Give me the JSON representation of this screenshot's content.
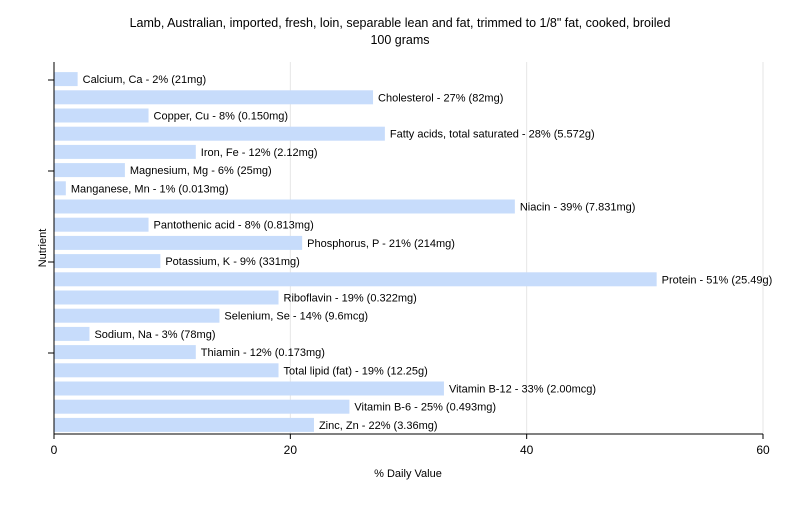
{
  "chart_data": {
    "type": "bar",
    "orientation": "horizontal",
    "title": "Lamb, Australian, imported, fresh, loin, separable lean and fat, trimmed to 1/8\" fat, cooked, broiled",
    "subtitle": "100 grams",
    "xlabel": "% Daily Value",
    "ylabel": "Nutrient",
    "xlim": [
      0,
      60
    ],
    "xticks": [
      0,
      20,
      40,
      60
    ],
    "grid": true,
    "legend": "none",
    "bar_color": "#c7dcfb",
    "categories": [
      "Calcium, Ca",
      "Cholesterol",
      "Copper, Cu",
      "Fatty acids, total saturated",
      "Iron, Fe",
      "Magnesium, Mg",
      "Manganese, Mn",
      "Niacin",
      "Pantothenic acid",
      "Phosphorus, P",
      "Potassium, K",
      "Protein",
      "Riboflavin",
      "Selenium, Se",
      "Sodium, Na",
      "Thiamin",
      "Total lipid (fat)",
      "Vitamin B-12",
      "Vitamin B-6",
      "Zinc, Zn"
    ],
    "values": [
      2,
      27,
      8,
      28,
      12,
      6,
      1,
      39,
      8,
      21,
      9,
      51,
      19,
      14,
      3,
      12,
      19,
      33,
      25,
      22
    ],
    "labels": [
      "Calcium, Ca - 2% (21mg)",
      "Cholesterol - 27% (82mg)",
      "Copper, Cu - 8% (0.150mg)",
      "Fatty acids, total saturated - 28% (5.572g)",
      "Iron, Fe - 12% (2.12mg)",
      "Magnesium, Mg - 6% (25mg)",
      "Manganese, Mn - 1% (0.013mg)",
      "Niacin - 39% (7.831mg)",
      "Pantothenic acid - 8% (0.813mg)",
      "Phosphorus, P - 21% (214mg)",
      "Potassium, K - 9% (331mg)",
      "Protein - 51% (25.49g)",
      "Riboflavin - 19% (0.322mg)",
      "Selenium, Se - 14% (9.6mcg)",
      "Sodium, Na - 3% (78mg)",
      "Thiamin - 12% (0.173mg)",
      "Total lipid (fat) - 19% (12.25g)",
      "Vitamin B-12 - 33% (2.00mcg)",
      "Vitamin B-6 - 25% (0.493mg)",
      "Zinc, Zn - 22% (3.36mg)"
    ]
  }
}
